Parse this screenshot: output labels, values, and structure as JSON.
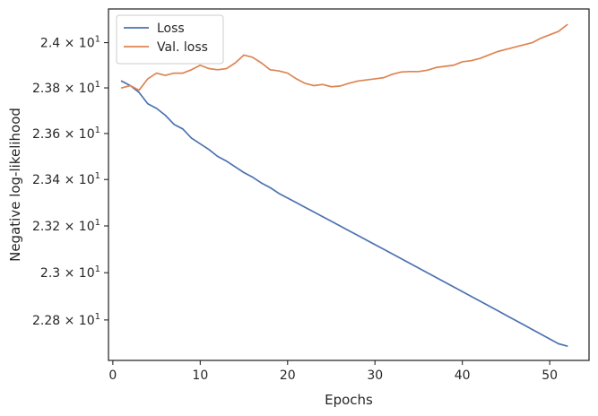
{
  "chart_data": {
    "type": "line",
    "xlabel": "Epochs",
    "ylabel": "Negative log-likelihood",
    "xlim": [
      -0.5,
      54.5
    ],
    "ylim": [
      22.63,
      24.15
    ],
    "yscale": "log",
    "grid": false,
    "legend": "upper-left",
    "x_ticks": [
      {
        "value": 0,
        "label": "0"
      },
      {
        "value": 10,
        "label": "10"
      },
      {
        "value": 20,
        "label": "20"
      },
      {
        "value": 30,
        "label": "30"
      },
      {
        "value": 40,
        "label": "40"
      },
      {
        "value": 50,
        "label": "50"
      }
    ],
    "y_ticks": [
      {
        "value": 22.8,
        "mant": "2.28",
        "exp": "1"
      },
      {
        "value": 23.0,
        "mant": "2.3",
        "exp": "1"
      },
      {
        "value": 23.2,
        "mant": "2.32",
        "exp": "1"
      },
      {
        "value": 23.4,
        "mant": "2.34",
        "exp": "1"
      },
      {
        "value": 23.6,
        "mant": "2.36",
        "exp": "1"
      },
      {
        "value": 23.8,
        "mant": "2.38",
        "exp": "1"
      },
      {
        "value": 24.0,
        "mant": "2.4",
        "exp": "1"
      }
    ],
    "x": [
      1,
      2,
      3,
      4,
      5,
      6,
      7,
      8,
      9,
      10,
      11,
      12,
      13,
      14,
      15,
      16,
      17,
      18,
      19,
      20,
      21,
      22,
      23,
      24,
      25,
      26,
      27,
      28,
      29,
      30,
      31,
      32,
      33,
      34,
      35,
      36,
      37,
      38,
      39,
      40,
      41,
      42,
      43,
      44,
      45,
      46,
      47,
      48,
      49,
      50,
      51,
      52
    ],
    "series": [
      {
        "name": "Loss",
        "color": "#4c72b0",
        "values": [
          23.83,
          23.81,
          23.78,
          23.73,
          23.71,
          23.68,
          23.64,
          23.62,
          23.58,
          23.555,
          23.53,
          23.5,
          23.48,
          23.455,
          23.43,
          23.41,
          23.385,
          23.365,
          23.34,
          23.32,
          23.3,
          23.28,
          23.26,
          23.24,
          23.22,
          23.2,
          23.18,
          23.16,
          23.14,
          23.12,
          23.1,
          23.08,
          23.06,
          23.04,
          23.02,
          23.0,
          22.98,
          22.96,
          22.94,
          22.92,
          22.9,
          22.88,
          22.86,
          22.84,
          22.82,
          22.8,
          22.78,
          22.76,
          22.74,
          22.72,
          22.7,
          22.69
        ]
      },
      {
        "name": "Val. loss",
        "color": "#dd8452",
        "values": [
          23.8,
          23.81,
          23.79,
          23.84,
          23.865,
          23.855,
          23.865,
          23.865,
          23.88,
          23.9,
          23.885,
          23.88,
          23.885,
          23.91,
          23.945,
          23.935,
          23.91,
          23.88,
          23.875,
          23.865,
          23.84,
          23.82,
          23.81,
          23.815,
          23.805,
          23.808,
          23.82,
          23.83,
          23.835,
          23.84,
          23.845,
          23.86,
          23.87,
          23.872,
          23.872,
          23.878,
          23.89,
          23.895,
          23.9,
          23.915,
          23.92,
          23.93,
          23.945,
          23.96,
          23.97,
          23.98,
          23.99,
          24.0,
          24.02,
          24.035,
          24.05,
          24.08
        ]
      }
    ]
  }
}
